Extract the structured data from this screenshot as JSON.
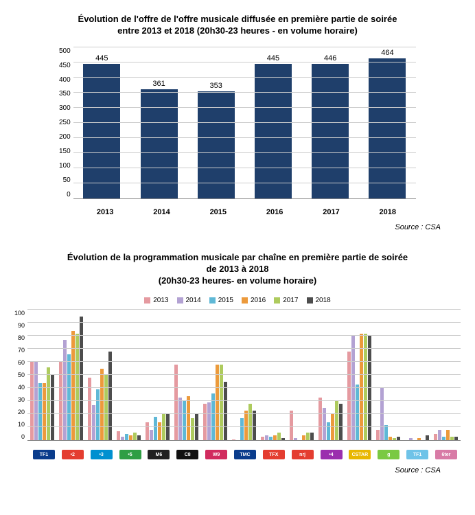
{
  "chart1": {
    "type": "bar",
    "title_line1": "Évolution de l'offre de l'offre musicale diffusée en première partie de soirée",
    "title_line2": "entre 2013 et 2018 (20h30-23 heures - en volume horaire)",
    "categories": [
      "2013",
      "2014",
      "2015",
      "2016",
      "2017",
      "2018"
    ],
    "values": [
      445,
      361,
      353,
      445,
      446,
      464
    ],
    "bar_color": "#1f3f6b",
    "ylim": [
      0,
      500
    ],
    "ytick_step": 50,
    "grid_color": "#cccccc",
    "background_color": "#ffffff",
    "title_fontsize": 13,
    "label_fontsize": 10,
    "source": "Source : CSA"
  },
  "chart2": {
    "type": "grouped_bar",
    "title_line1": "Évolution de la programmation musicale par chaîne en première partie de soirée",
    "title_line2": "de 2013 à 2018",
    "title_line3": "(20h30-23 heures- en volume horaire)",
    "ylim": [
      0,
      100
    ],
    "ytick_step": 10,
    "grid_color": "#cccccc",
    "series": [
      {
        "label": "2013",
        "color": "#e59aa0"
      },
      {
        "label": "2014",
        "color": "#b3a2d3"
      },
      {
        "label": "2015",
        "color": "#5fb8d6"
      },
      {
        "label": "2016",
        "color": "#ec9a3c"
      },
      {
        "label": "2017",
        "color": "#aecb5e"
      },
      {
        "label": "2018",
        "color": "#4d4d4d"
      }
    ],
    "channels": [
      {
        "name": "TF1",
        "logo_bg": "#0a3c8c",
        "logo_text": "TF1",
        "values": [
          61,
          60,
          44,
          44,
          56,
          50
        ]
      },
      {
        "name": "F2",
        "logo_bg": "#e43d30",
        "logo_text": "•2",
        "values": [
          61,
          77,
          66,
          84,
          82,
          95
        ]
      },
      {
        "name": "F3",
        "logo_bg": "#0090d0",
        "logo_text": "•3",
        "values": [
          48,
          27,
          39,
          55,
          50,
          68
        ]
      },
      {
        "name": "F5",
        "logo_bg": "#2f9e44",
        "logo_text": "•5",
        "values": [
          7,
          3,
          5,
          4,
          6,
          4
        ]
      },
      {
        "name": "M6",
        "logo_bg": "#222222",
        "logo_text": "M6",
        "values": [
          14,
          8,
          18,
          14,
          21,
          21
        ]
      },
      {
        "name": "C8",
        "logo_bg": "#111111",
        "logo_text": "C8",
        "values": [
          58,
          33,
          30,
          34,
          17,
          20
        ]
      },
      {
        "name": "W9",
        "logo_bg": "#d12b5e",
        "logo_text": "W9",
        "values": [
          28,
          29,
          36,
          58,
          58,
          45
        ]
      },
      {
        "name": "TMC",
        "logo_bg": "#0a3c8c",
        "logo_text": "TMC",
        "values": [
          1,
          0,
          17,
          23,
          28,
          23
        ]
      },
      {
        "name": "TFX",
        "logo_bg": "#e43d30",
        "logo_text": "TFX",
        "values": [
          3,
          4,
          3,
          4,
          6,
          2
        ]
      },
      {
        "name": "NRJ12",
        "logo_bg": "#e43d30",
        "logo_text": "nrj",
        "values": [
          23,
          2,
          0,
          4,
          6,
          6
        ]
      },
      {
        "name": "F4",
        "logo_bg": "#9b2fae",
        "logo_text": "•4",
        "values": [
          33,
          25,
          14,
          21,
          30,
          28
        ]
      },
      {
        "name": "CSTAR",
        "logo_bg": "#e8b700",
        "logo_text": "CSTAR",
        "values": [
          68,
          80,
          43,
          82,
          82,
          81
        ]
      },
      {
        "name": "Gulli",
        "logo_bg": "#7ac943",
        "logo_text": "g",
        "values": [
          8,
          40,
          12,
          3,
          2,
          3
        ]
      },
      {
        "name": "TF1SF",
        "logo_bg": "#6fc3e8",
        "logo_text": "TF1",
        "values": [
          0,
          2,
          0,
          2,
          0,
          4
        ]
      },
      {
        "name": "6ter",
        "logo_bg": "#d87ba6",
        "logo_text": "6ter",
        "values": [
          5,
          8,
          3,
          8,
          3,
          3
        ]
      }
    ],
    "source": "Source : CSA"
  }
}
